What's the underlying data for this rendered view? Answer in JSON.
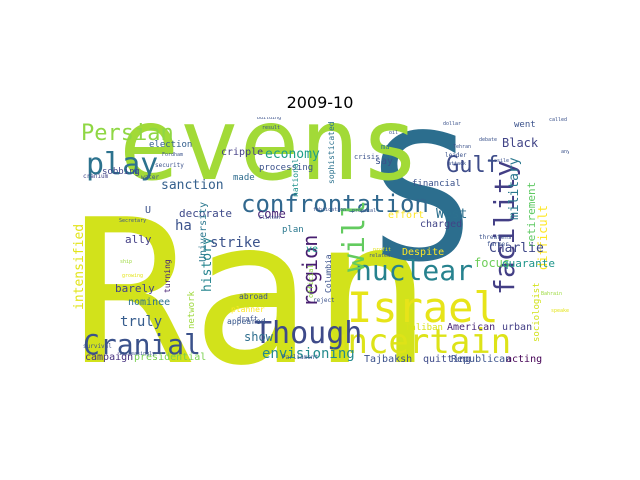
{
  "title": "2009-10",
  "colors": {
    "yellow": "#e4e418",
    "lime": "#9bd93c",
    "green": "#4cc26c",
    "teal": "#24868e",
    "blue": "#2f6c8e",
    "indigo": "#3b528b",
    "purple": "#482878",
    "dark": "#440154"
  },
  "words": [
    {
      "id": "ran",
      "text": "Ran",
      "color": "#d2e21b"
    },
    {
      "id": "s",
      "text": "S",
      "color": "#2c6e8e"
    },
    {
      "id": "evens",
      "text": "evens",
      "color": "#a2da37"
    },
    {
      "id": "israel",
      "text": "Israel",
      "color": "#e7e419"
    },
    {
      "id": "uncertain",
      "text": "uncertain",
      "color": "#dde318"
    },
    {
      "id": "though",
      "text": "Though",
      "color": "#3e4a89"
    },
    {
      "id": "confrontation",
      "text": "confrontation",
      "color": "#31688e"
    },
    {
      "id": "nuclear",
      "text": "nuclear",
      "color": "#26828e"
    },
    {
      "id": "facility",
      "text": "facility",
      "color": "#433e85"
    },
    {
      "id": "will",
      "text": "will",
      "color": "#63cb5f"
    },
    {
      "id": "play",
      "text": "play",
      "color": "#2c728e"
    },
    {
      "id": "persian",
      "text": "Persian",
      "color": "#8fd744"
    },
    {
      "id": "cranial",
      "text": "Cranial",
      "color": "#3b528b"
    },
    {
      "id": "gulf",
      "text": "Gulf",
      "color": "#3e4c8a"
    },
    {
      "id": "region",
      "text": "region",
      "color": "#481f70"
    },
    {
      "id": "sanction",
      "text": "sanction",
      "color": "#35608d"
    },
    {
      "id": "economy",
      "text": "economy",
      "color": "#1f9e89"
    },
    {
      "id": "black",
      "text": "Black",
      "color": "#414487"
    },
    {
      "id": "military",
      "text": "military",
      "color": "#2a788e"
    },
    {
      "id": "retirement",
      "text": "retirement",
      "color": "#5ec962"
    },
    {
      "id": "difficult",
      "text": "difficult",
      "color": "#fde725"
    },
    {
      "id": "charlie",
      "text": "Charlie",
      "color": "#3f4788"
    },
    {
      "id": "west",
      "text": "West",
      "color": "#2d708e"
    },
    {
      "id": "focus",
      "text": "focus",
      "color": "#6ece58"
    },
    {
      "id": "quarante",
      "text": "quarante",
      "color": "#1f968b"
    },
    {
      "id": "history",
      "text": "history",
      "color": "#25848e"
    },
    {
      "id": "strike",
      "text": "strike",
      "color": "#3b528b"
    },
    {
      "id": "truly",
      "text": "truly",
      "color": "#365c8d"
    },
    {
      "id": "show",
      "text": "show",
      "color": "#2e6e8e"
    },
    {
      "id": "envisioning",
      "text": "envisioning",
      "color": "#238a8d"
    },
    {
      "id": "intensified",
      "text": "intensified",
      "color": "#e2e418"
    },
    {
      "id": "ha",
      "text": "ha",
      "color": "#3b528b"
    },
    {
      "id": "come",
      "text": "come",
      "color": "#482475"
    },
    {
      "id": "decorate",
      "text": "decorate",
      "color": "#3e4a89"
    },
    {
      "id": "barely",
      "text": "barely",
      "color": "#414487"
    },
    {
      "id": "nominee",
      "text": "nominee",
      "color": "#2d718e"
    },
    {
      "id": "campaign",
      "text": "campaign",
      "color": "#46317e"
    },
    {
      "id": "presidential",
      "text": "presidential",
      "color": "#7ad151"
    },
    {
      "id": "ally",
      "text": "ally",
      "color": "#433e85"
    },
    {
      "id": "university",
      "text": "University",
      "color": "#2a778e"
    },
    {
      "id": "network",
      "text": "network",
      "color": "#9dd93b"
    },
    {
      "id": "u",
      "text": "U",
      "color": "#3b528b"
    },
    {
      "id": "ve",
      "text": "ve",
      "color": "#1f9a8a"
    },
    {
      "id": "plan",
      "text": "plan",
      "color": "#2a788e"
    },
    {
      "id": "made",
      "text": "made",
      "color": "#2f6c8e"
    },
    {
      "id": "cripple",
      "text": "cripple",
      "color": "#433e85"
    },
    {
      "id": "sobbing",
      "text": "sobbing",
      "color": "#404588"
    },
    {
      "id": "election",
      "text": "election",
      "color": "#35608d"
    },
    {
      "id": "processing",
      "text": "processing",
      "color": "#3b528b"
    },
    {
      "id": "national",
      "text": "national",
      "color": "#20928c"
    },
    {
      "id": "sophisticated",
      "text": "sophisticated",
      "color": "#2c728e"
    },
    {
      "id": "say",
      "text": "say",
      "color": "#3b528b"
    },
    {
      "id": "financial",
      "text": "financial",
      "color": "#3b528b"
    },
    {
      "id": "charged",
      "text": "charged",
      "color": "#414487"
    },
    {
      "id": "effort",
      "text": "effort",
      "color": "#fde725"
    },
    {
      "id": "despite",
      "text": "Despite",
      "color": "#fde725"
    },
    {
      "id": "went",
      "text": "went",
      "color": "#3b528b"
    },
    {
      "id": "taliban",
      "text": "Taliban",
      "color": "#d8e219"
    },
    {
      "id": "american",
      "text": "American",
      "color": "#482475"
    },
    {
      "id": "urban",
      "text": "urban",
      "color": "#433e85"
    },
    {
      "id": "tajbaksh",
      "text": "Tajbaksh",
      "color": "#3b528b"
    },
    {
      "id": "quitting",
      "text": "quitting",
      "color": "#3e4a89"
    },
    {
      "id": "republican",
      "text": "Republican",
      "color": "#3b528b"
    },
    {
      "id": "acting",
      "text": "acting",
      "color": "#440154"
    },
    {
      "id": "sociologist",
      "text": "sociologist",
      "color": "#d2e21b"
    },
    {
      "id": "appeared",
      "text": "appeared",
      "color": "#38588c"
    },
    {
      "id": "columbia",
      "text": "Columbia",
      "color": "#3b528b"
    },
    {
      "id": "abroad",
      "text": "abroad",
      "color": "#3b528b"
    },
    {
      "id": "turning",
      "text": "turning",
      "color": "#482475"
    },
    {
      "id": "planner",
      "text": "planner",
      "color": "#fde725"
    },
    {
      "id": "draft",
      "text": "draft",
      "color": "#3b528b"
    },
    {
      "id": "crisis",
      "text": "crisis",
      "color": "#3b528b"
    },
    {
      "id": "official",
      "text": "official",
      "color": "#8fd744"
    },
    {
      "id": "ma",
      "text": "ma",
      "color": "#2a788e"
    },
    {
      "id": "security",
      "text": "security",
      "color": "#3b528b"
    },
    {
      "id": "cranium",
      "text": "cranium",
      "color": "#414487"
    },
    {
      "id": "water",
      "text": "water",
      "color": "#3b528b"
    },
    {
      "id": "parliament",
      "text": "Parliament",
      "color": "#3b528b"
    },
    {
      "id": "survival",
      "text": "survival",
      "color": "#3b528b"
    },
    {
      "id": "threatens",
      "text": "threatens",
      "color": "#3b528b"
    },
    {
      "id": "farmer",
      "text": "farmer",
      "color": "#3b528b"
    },
    {
      "id": "leader",
      "text": "leader",
      "color": "#3b528b"
    },
    {
      "id": "reject",
      "text": "reject",
      "color": "#3b528b"
    },
    {
      "id": "fabrication",
      "text": "fabrication",
      "color": "#3b528b"
    },
    {
      "id": "proposal",
      "text": "proposal",
      "color": "#3b528b"
    },
    {
      "id": "related",
      "text": "related",
      "color": "#3b528b"
    },
    {
      "id": "building",
      "text": "building",
      "color": "#3b528b"
    },
    {
      "id": "secretary",
      "text": "Secretary",
      "color": "#3b528b"
    },
    {
      "id": "clinton",
      "text": "Clinton",
      "color": "#3b528b"
    },
    {
      "id": "fordham",
      "text": "Fordham",
      "color": "#3b528b"
    },
    {
      "id": "result",
      "text": "result",
      "color": "#3b528b"
    },
    {
      "id": "speaker",
      "text": "speaker",
      "color": "#e4e418"
    },
    {
      "id": "ship",
      "text": "ship",
      "color": "#9bd93c"
    },
    {
      "id": "growing",
      "text": "growing",
      "color": "#e4e418"
    },
    {
      "id": "increasingly",
      "text": "increasingly",
      "color": "#3b528b"
    },
    {
      "id": "called",
      "text": "called",
      "color": "#3b528b"
    },
    {
      "id": "anyway",
      "text": "anyway",
      "color": "#3b528b"
    },
    {
      "id": "bahrain",
      "text": "Bahrain",
      "color": "#9bd93c"
    },
    {
      "id": "profit",
      "text": "profit",
      "color": "#e4e418"
    },
    {
      "id": "dollar",
      "text": "dollar",
      "color": "#3b528b"
    },
    {
      "id": "oil",
      "text": "oil",
      "color": "#3b528b"
    },
    {
      "id": "debate",
      "text": "debate",
      "color": "#3b528b"
    },
    {
      "id": "missile",
      "text": "missile",
      "color": "#3b528b"
    },
    {
      "id": "tehran",
      "text": "Tehran",
      "color": "#3b528b"
    },
    {
      "id": "attack",
      "text": "attack",
      "color": "#3b528b"
    }
  ]
}
